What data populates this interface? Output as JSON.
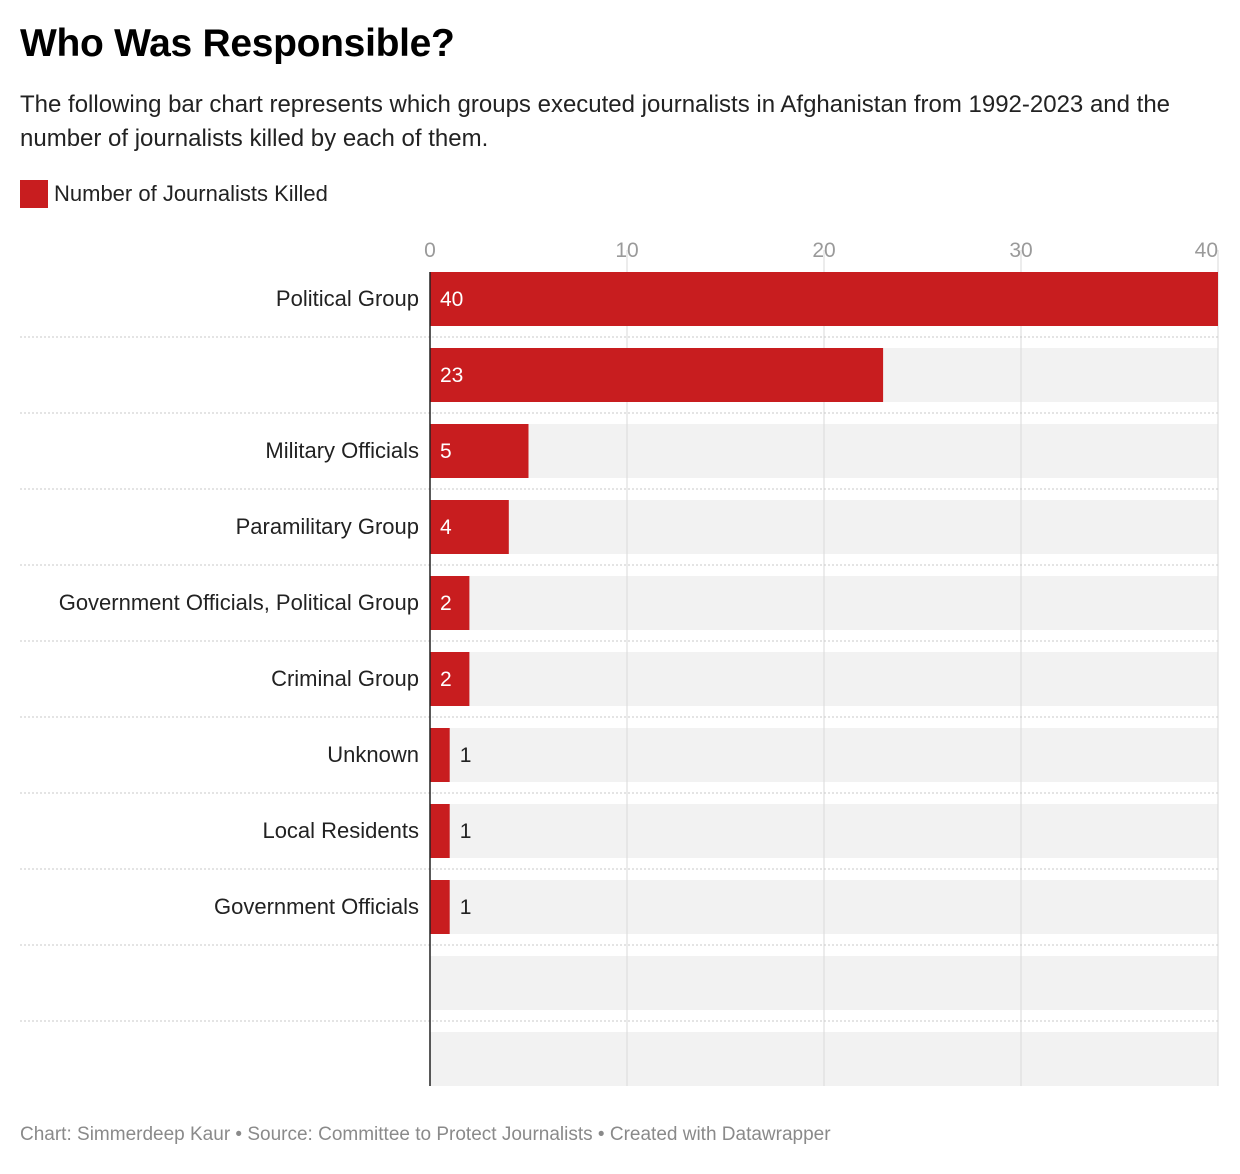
{
  "title": "Who Was Responsible?",
  "subtitle": "The following bar chart represents which groups executed journalists in Afghanistan from 1992-2023 and the number of journalists killed by each of them.",
  "legend": {
    "label": "Number of Journalists Killed"
  },
  "footer": "Chart: Simmerdeep Kaur • Source: Committee to Protect Journalists • Created with Datawrapper",
  "colors": {
    "bar": "#c81d1f",
    "track": "#f2f2f2",
    "grid": "#d9d9d9",
    "tick": "#9a9a9a"
  },
  "chart_data": {
    "type": "bar",
    "orientation": "horizontal",
    "title": "Who Was Responsible?",
    "xlabel": "",
    "ylabel": "",
    "xlim": [
      0,
      40
    ],
    "ticks": [
      0,
      10,
      20,
      30,
      40
    ],
    "grid": true,
    "legend_position": "top-left",
    "series": [
      {
        "name": "Number of Journalists Killed",
        "color": "#c81d1f"
      }
    ],
    "categories": [
      "Political Group",
      "",
      "Military Officials",
      "Paramilitary Group",
      "Government Officials, Political Group",
      "Criminal Group",
      "Unknown",
      "Local Residents",
      "Government Officials",
      "",
      ""
    ],
    "values": [
      40,
      23,
      5,
      4,
      2,
      2,
      1,
      1,
      1,
      null,
      null
    ]
  }
}
